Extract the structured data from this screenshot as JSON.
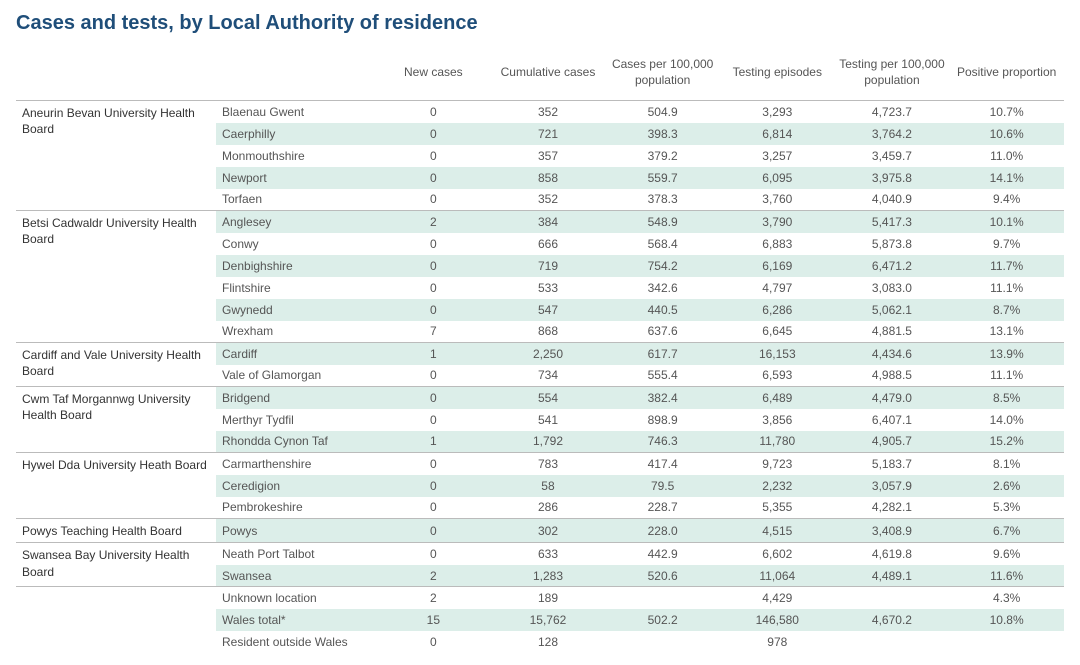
{
  "title": "Cases and tests, by Local Authority of residence",
  "columns": [
    "New cases",
    "Cumulative cases",
    "Cases per 100,000 population",
    "Testing episodes",
    "Testing per 100,000 population",
    "Positive proportion"
  ],
  "colors": {
    "title": "#1f4e79",
    "alt_row_bg": "#dceee9",
    "border": "#bbbbbb",
    "text": "#555555",
    "hb_text": "#333333",
    "background": "#ffffff"
  },
  "groups": [
    {
      "hb": "Aneurin Bevan University Health Board",
      "rows": [
        {
          "la": "Blaenau Gwent",
          "v": [
            "0",
            "352",
            "504.9",
            "3,293",
            "4,723.7",
            "10.7%"
          ],
          "alt": false
        },
        {
          "la": "Caerphilly",
          "v": [
            "0",
            "721",
            "398.3",
            "6,814",
            "3,764.2",
            "10.6%"
          ],
          "alt": true
        },
        {
          "la": "Monmouthshire",
          "v": [
            "0",
            "357",
            "379.2",
            "3,257",
            "3,459.7",
            "11.0%"
          ],
          "alt": false
        },
        {
          "la": "Newport",
          "v": [
            "0",
            "858",
            "559.7",
            "6,095",
            "3,975.8",
            "14.1%"
          ],
          "alt": true
        },
        {
          "la": "Torfaen",
          "v": [
            "0",
            "352",
            "378.3",
            "3,760",
            "4,040.9",
            "9.4%"
          ],
          "alt": false
        }
      ]
    },
    {
      "hb": "Betsi Cadwaldr University Health Board",
      "rows": [
        {
          "la": "Anglesey",
          "v": [
            "2",
            "384",
            "548.9",
            "3,790",
            "5,417.3",
            "10.1%"
          ],
          "alt": true
        },
        {
          "la": "Conwy",
          "v": [
            "0",
            "666",
            "568.4",
            "6,883",
            "5,873.8",
            "9.7%"
          ],
          "alt": false
        },
        {
          "la": "Denbighshire",
          "v": [
            "0",
            "719",
            "754.2",
            "6,169",
            "6,471.2",
            "11.7%"
          ],
          "alt": true
        },
        {
          "la": "Flintshire",
          "v": [
            "0",
            "533",
            "342.6",
            "4,797",
            "3,083.0",
            "11.1%"
          ],
          "alt": false
        },
        {
          "la": "Gwynedd",
          "v": [
            "0",
            "547",
            "440.5",
            "6,286",
            "5,062.1",
            "8.7%"
          ],
          "alt": true
        },
        {
          "la": "Wrexham",
          "v": [
            "7",
            "868",
            "637.6",
            "6,645",
            "4,881.5",
            "13.1%"
          ],
          "alt": false
        }
      ]
    },
    {
      "hb": "Cardiff and Vale University Health Board",
      "rows": [
        {
          "la": "Cardiff",
          "v": [
            "1",
            "2,250",
            "617.7",
            "16,153",
            "4,434.6",
            "13.9%"
          ],
          "alt": true
        },
        {
          "la": "Vale of Glamorgan",
          "v": [
            "0",
            "734",
            "555.4",
            "6,593",
            "4,988.5",
            "11.1%"
          ],
          "alt": false
        }
      ]
    },
    {
      "hb": "Cwm Taf Morgannwg University Health Board",
      "rows": [
        {
          "la": "Bridgend",
          "v": [
            "0",
            "554",
            "382.4",
            "6,489",
            "4,479.0",
            "8.5%"
          ],
          "alt": true
        },
        {
          "la": "Merthyr Tydfil",
          "v": [
            "0",
            "541",
            "898.9",
            "3,856",
            "6,407.1",
            "14.0%"
          ],
          "alt": false
        },
        {
          "la": "Rhondda Cynon Taf",
          "v": [
            "1",
            "1,792",
            "746.3",
            "11,780",
            "4,905.7",
            "15.2%"
          ],
          "alt": true
        }
      ]
    },
    {
      "hb": "Hywel Dda University Heath Board",
      "rows": [
        {
          "la": "Carmarthenshire",
          "v": [
            "0",
            "783",
            "417.4",
            "9,723",
            "5,183.7",
            "8.1%"
          ],
          "alt": false
        },
        {
          "la": "Ceredigion",
          "v": [
            "0",
            "58",
            "79.5",
            "2,232",
            "3,057.9",
            "2.6%"
          ],
          "alt": true
        },
        {
          "la": "Pembrokeshire",
          "v": [
            "0",
            "286",
            "228.7",
            "5,355",
            "4,282.1",
            "5.3%"
          ],
          "alt": false
        }
      ]
    },
    {
      "hb": "Powys Teaching Health Board",
      "rows": [
        {
          "la": "Powys",
          "v": [
            "0",
            "302",
            "228.0",
            "4,515",
            "3,408.9",
            "6.7%"
          ],
          "alt": true
        }
      ]
    },
    {
      "hb": "Swansea Bay University Health Board",
      "rows": [
        {
          "la": "Neath Port Talbot",
          "v": [
            "0",
            "633",
            "442.9",
            "6,602",
            "4,619.8",
            "9.6%"
          ],
          "alt": false
        },
        {
          "la": "Swansea",
          "v": [
            "2",
            "1,283",
            "520.6",
            "11,064",
            "4,489.1",
            "11.6%"
          ],
          "alt": true
        }
      ]
    },
    {
      "hb": "",
      "rows": [
        {
          "la": "Unknown location",
          "v": [
            "2",
            "189",
            "",
            "4,429",
            "",
            "4.3%"
          ],
          "alt": false
        },
        {
          "la": "Wales total*",
          "v": [
            "15",
            "15,762",
            "502.2",
            "146,580",
            "4,670.2",
            "10.8%"
          ],
          "alt": true
        },
        {
          "la": "Resident outside Wales",
          "v": [
            "0",
            "128",
            "",
            "978",
            "",
            ""
          ],
          "alt": false
        }
      ]
    }
  ]
}
